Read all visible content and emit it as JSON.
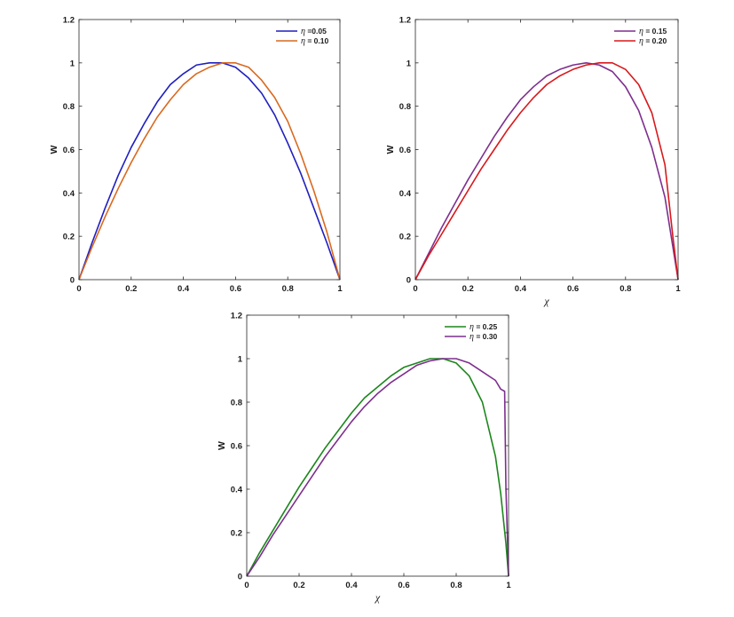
{
  "chart_data": [
    {
      "type": "line",
      "title": "",
      "xlabel": "",
      "ylabel": "W",
      "xlim": [
        0,
        1
      ],
      "ylim": [
        0,
        1.2
      ],
      "xticks": [
        "0",
        "0.2",
        "0.4",
        "0.6",
        "0.8",
        "1"
      ],
      "yticks": [
        "0",
        "0.2",
        "0.4",
        "0.6",
        "0.8",
        "1",
        "1.2"
      ],
      "grid": false,
      "legend_position": "top-right",
      "series": [
        {
          "name": "η =0.05",
          "eta": "η",
          "label_rest": " =0.05",
          "color": "#1f1fbf",
          "x": [
            0,
            0.05,
            0.1,
            0.15,
            0.2,
            0.25,
            0.3,
            0.35,
            0.4,
            0.45,
            0.5,
            0.55,
            0.6,
            0.65,
            0.7,
            0.75,
            0.8,
            0.85,
            0.9,
            0.95,
            1.0
          ],
          "y": [
            0,
            0.17,
            0.33,
            0.48,
            0.61,
            0.72,
            0.82,
            0.9,
            0.95,
            0.99,
            1.0,
            1.0,
            0.98,
            0.93,
            0.86,
            0.76,
            0.63,
            0.49,
            0.33,
            0.17,
            0
          ]
        },
        {
          "name": "η = 0.10",
          "eta": "η",
          "label_rest": " = 0.10",
          "color": "#d9691e",
          "x": [
            0,
            0.05,
            0.1,
            0.15,
            0.2,
            0.25,
            0.3,
            0.35,
            0.4,
            0.45,
            0.5,
            0.55,
            0.6,
            0.65,
            0.7,
            0.75,
            0.8,
            0.85,
            0.9,
            0.95,
            1.0
          ],
          "y": [
            0,
            0.15,
            0.29,
            0.42,
            0.54,
            0.65,
            0.75,
            0.83,
            0.9,
            0.95,
            0.98,
            1.0,
            1.0,
            0.98,
            0.92,
            0.84,
            0.73,
            0.58,
            0.41,
            0.22,
            0
          ]
        }
      ]
    },
    {
      "type": "line",
      "title": "",
      "xlabel": "χ",
      "ylabel": "W",
      "xlim": [
        0,
        1
      ],
      "ylim": [
        0,
        1.2
      ],
      "xticks": [
        "0",
        "0.2",
        "0.4",
        "0.6",
        "0.8",
        "1"
      ],
      "yticks": [
        "0",
        "0.2",
        "0.4",
        "0.6",
        "0.8",
        "1",
        "1.2"
      ],
      "grid": false,
      "legend_position": "top-right",
      "series": [
        {
          "name": "η = 0.15",
          "eta": "η",
          "label_rest": " = 0.15",
          "color": "#7e2f8e",
          "x": [
            0,
            0.05,
            0.1,
            0.15,
            0.2,
            0.25,
            0.3,
            0.35,
            0.4,
            0.45,
            0.5,
            0.55,
            0.6,
            0.65,
            0.7,
            0.75,
            0.8,
            0.85,
            0.9,
            0.95,
            1.0
          ],
          "y": [
            0,
            0.12,
            0.24,
            0.35,
            0.46,
            0.56,
            0.66,
            0.75,
            0.83,
            0.89,
            0.94,
            0.97,
            0.99,
            1.0,
            0.99,
            0.96,
            0.89,
            0.78,
            0.61,
            0.38,
            0
          ]
        },
        {
          "name": "η = 0.20",
          "eta": "η",
          "label_rest": " = 0.20",
          "color": "#d7191c",
          "x": [
            0,
            0.05,
            0.1,
            0.15,
            0.2,
            0.25,
            0.3,
            0.35,
            0.4,
            0.45,
            0.5,
            0.55,
            0.6,
            0.65,
            0.7,
            0.75,
            0.8,
            0.85,
            0.9,
            0.95,
            0.98,
            1.0
          ],
          "y": [
            0,
            0.11,
            0.21,
            0.31,
            0.41,
            0.51,
            0.6,
            0.69,
            0.77,
            0.84,
            0.9,
            0.94,
            0.97,
            0.99,
            1.0,
            1.0,
            0.97,
            0.9,
            0.77,
            0.53,
            0.2,
            0
          ]
        }
      ]
    },
    {
      "type": "line",
      "title": "",
      "xlabel": "χ",
      "ylabel": "W",
      "xlim": [
        0,
        1
      ],
      "ylim": [
        0,
        1.2
      ],
      "xticks": [
        "0",
        "0.2",
        "0.4",
        "0.6",
        "0.8",
        "1"
      ],
      "yticks": [
        "0",
        "0.2",
        "0.4",
        "0.6",
        "0.8",
        "1",
        "1.2"
      ],
      "grid": false,
      "legend_position": "top-right",
      "series": [
        {
          "name": "η = 0.25",
          "eta": "η",
          "label_rest": " = 0.25",
          "color": "#1c861c",
          "x": [
            0,
            0.05,
            0.1,
            0.15,
            0.2,
            0.25,
            0.3,
            0.35,
            0.4,
            0.45,
            0.5,
            0.55,
            0.6,
            0.65,
            0.7,
            0.75,
            0.8,
            0.85,
            0.9,
            0.95,
            0.97,
            0.99,
            1.0
          ],
          "y": [
            0,
            0.11,
            0.21,
            0.31,
            0.41,
            0.5,
            0.59,
            0.67,
            0.75,
            0.82,
            0.87,
            0.92,
            0.96,
            0.98,
            1.0,
            1.0,
            0.98,
            0.92,
            0.8,
            0.55,
            0.38,
            0.15,
            0
          ]
        },
        {
          "name": "η = 0.30",
          "eta": "η",
          "label_rest": " = 0.30",
          "color": "#7e2f8e",
          "x": [
            0,
            0.05,
            0.1,
            0.15,
            0.2,
            0.25,
            0.3,
            0.35,
            0.4,
            0.45,
            0.5,
            0.55,
            0.6,
            0.65,
            0.7,
            0.75,
            0.8,
            0.85,
            0.9,
            0.95,
            0.97,
            0.985,
            0.99,
            1.0
          ],
          "y": [
            0,
            0.09,
            0.19,
            0.28,
            0.37,
            0.46,
            0.55,
            0.63,
            0.71,
            0.78,
            0.84,
            0.89,
            0.93,
            0.97,
            0.99,
            1.0,
            1.0,
            0.98,
            0.94,
            0.9,
            0.86,
            0.85,
            0.4,
            0
          ]
        }
      ]
    }
  ]
}
